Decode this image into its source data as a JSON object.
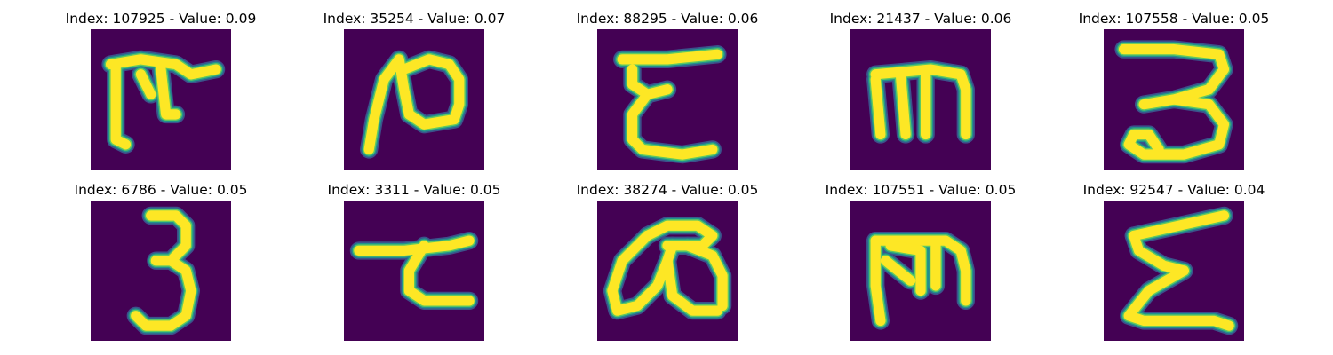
{
  "colors": {
    "background": "#440154",
    "mid_low": "#3b528b",
    "mid": "#21918c",
    "mid_high": "#5ec962",
    "stroke": "#fde725"
  },
  "panels": [
    {
      "index": "107925",
      "value": "0.09",
      "title": "Index: 107925 - Value: 0.09",
      "glyph": "rho-like"
    },
    {
      "index": "35254",
      "value": "0.07",
      "title": "Index: 35254 - Value: 0.07",
      "glyph": "curl-like"
    },
    {
      "index": "88295",
      "value": "0.06",
      "title": "Index: 88295 - Value: 0.06",
      "glyph": "epsilon-like"
    },
    {
      "index": "21437",
      "value": "0.06",
      "title": "Index: 21437 - Value: 0.06",
      "glyph": "m-like"
    },
    {
      "index": "107558",
      "value": "0.05",
      "title": "Index: 107558 - Value: 0.05",
      "glyph": "three-like"
    },
    {
      "index": "6786",
      "value": "0.05",
      "title": "Index: 6786 - Value: 0.05",
      "glyph": "three-like"
    },
    {
      "index": "3311",
      "value": "0.05",
      "title": "Index: 3311 - Value: 0.05",
      "glyph": "tau-like"
    },
    {
      "index": "38274",
      "value": "0.05",
      "title": "Index: 38274 - Value: 0.05",
      "glyph": "loop-like"
    },
    {
      "index": "107551",
      "value": "0.05",
      "title": "Index: 107551 - Value: 0.05",
      "glyph": "m-block-like"
    },
    {
      "index": "92547",
      "value": "0.04",
      "title": "Index: 92547 - Value: 0.04",
      "glyph": "sigma-like"
    }
  ]
}
